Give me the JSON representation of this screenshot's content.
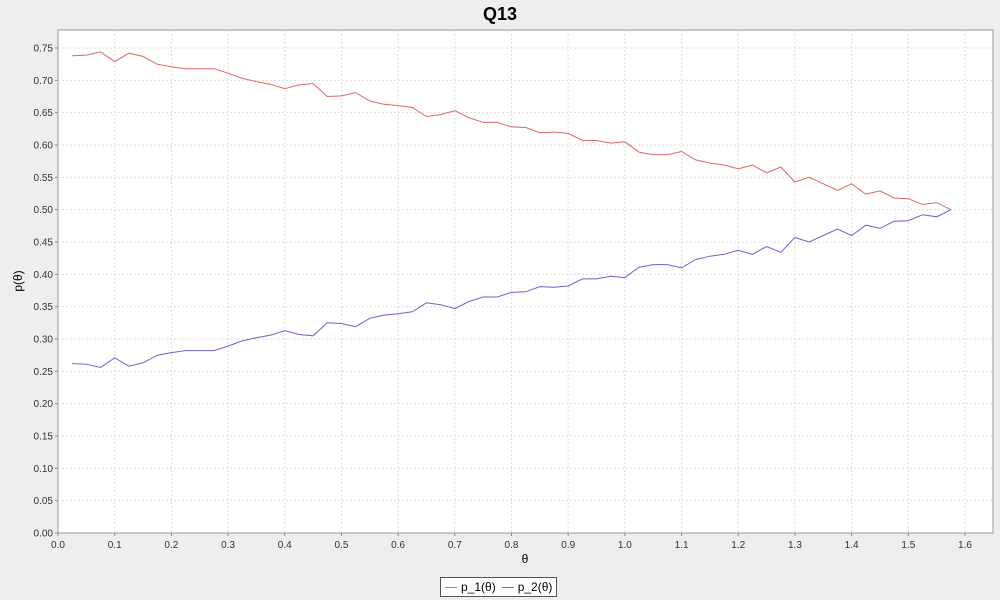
{
  "chart_data": {
    "type": "line",
    "title": "Q13",
    "xlabel": "θ",
    "ylabel": "p(θ)",
    "xlim": [
      0.0,
      1.6
    ],
    "ylim": [
      0.0,
      0.75
    ],
    "grid": true,
    "legend_position": "bottom-center",
    "x_ticks": [
      "0.0",
      "0.1",
      "0.2",
      "0.3",
      "0.4",
      "0.5",
      "0.6",
      "0.7",
      "0.8",
      "0.9",
      "1.0",
      "1.1",
      "1.2",
      "1.3",
      "1.4",
      "1.5",
      "1.6"
    ],
    "y_ticks": [
      "0.00",
      "0.05",
      "0.10",
      "0.15",
      "0.20",
      "0.25",
      "0.30",
      "0.35",
      "0.40",
      "0.45",
      "0.50",
      "0.55",
      "0.60",
      "0.65",
      "0.70",
      "0.75"
    ],
    "x": [
      0.025,
      0.05,
      0.075,
      0.1,
      0.125,
      0.15,
      0.175,
      0.2,
      0.225,
      0.25,
      0.275,
      0.3,
      0.325,
      0.35,
      0.375,
      0.4,
      0.425,
      0.45,
      0.475,
      0.5,
      0.525,
      0.55,
      0.575,
      0.6,
      0.625,
      0.65,
      0.675,
      0.7,
      0.725,
      0.75,
      0.775,
      0.8,
      0.825,
      0.85,
      0.875,
      0.9,
      0.925,
      0.95,
      0.975,
      1.0,
      1.025,
      1.05,
      1.075,
      1.1,
      1.125,
      1.15,
      1.175,
      1.2,
      1.225,
      1.25,
      1.275,
      1.3,
      1.325,
      1.35,
      1.375,
      1.4,
      1.425,
      1.45,
      1.475,
      1.5,
      1.525,
      1.55,
      1.575
    ],
    "series": [
      {
        "name": "p_1(θ)",
        "color": "#e06666",
        "values": [
          0.738,
          0.739,
          0.744,
          0.729,
          0.742,
          0.737,
          0.725,
          0.721,
          0.718,
          0.718,
          0.718,
          0.711,
          0.703,
          0.698,
          0.694,
          0.687,
          0.693,
          0.695,
          0.675,
          0.676,
          0.681,
          0.668,
          0.663,
          0.661,
          0.658,
          0.644,
          0.647,
          0.653,
          0.642,
          0.635,
          0.635,
          0.628,
          0.627,
          0.619,
          0.62,
          0.618,
          0.607,
          0.607,
          0.603,
          0.605,
          0.589,
          0.585,
          0.585,
          0.59,
          0.577,
          0.572,
          0.569,
          0.563,
          0.569,
          0.557,
          0.566,
          0.543,
          0.55,
          0.54,
          0.53,
          0.54,
          0.524,
          0.529,
          0.518,
          0.517,
          0.508,
          0.511,
          0.5
        ]
      },
      {
        "name": "p_2(θ)",
        "color": "#6666cc",
        "values": [
          0.262,
          0.261,
          0.256,
          0.271,
          0.258,
          0.263,
          0.275,
          0.279,
          0.282,
          0.282,
          0.282,
          0.289,
          0.297,
          0.302,
          0.306,
          0.313,
          0.307,
          0.305,
          0.325,
          0.324,
          0.319,
          0.332,
          0.337,
          0.339,
          0.342,
          0.356,
          0.353,
          0.347,
          0.358,
          0.365,
          0.365,
          0.372,
          0.373,
          0.381,
          0.38,
          0.382,
          0.393,
          0.393,
          0.397,
          0.395,
          0.411,
          0.415,
          0.415,
          0.41,
          0.423,
          0.428,
          0.431,
          0.437,
          0.431,
          0.443,
          0.434,
          0.457,
          0.45,
          0.46,
          0.47,
          0.46,
          0.476,
          0.471,
          0.482,
          0.483,
          0.492,
          0.489,
          0.5
        ]
      }
    ]
  }
}
